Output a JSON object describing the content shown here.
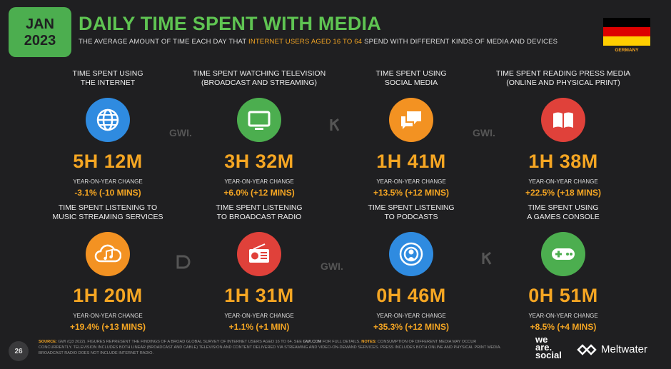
{
  "header": {
    "month": "JAN",
    "year": "2023",
    "title": "DAILY TIME SPENT WITH MEDIA",
    "subtitle_pre": "THE AVERAGE AMOUNT OF TIME EACH DAY THAT ",
    "subtitle_highlight": "INTERNET USERS AGED 16 TO 64",
    "subtitle_post": " SPEND WITH DIFFERENT KINDS OF MEDIA AND DEVICES",
    "country": "GERMANY"
  },
  "colors": {
    "accent_green": "#5fc452",
    "accent_orange": "#f5a623",
    "background": "#1f1f21"
  },
  "watermarks": [
    "GWI.",
    "GWI.",
    "GWI."
  ],
  "cells": [
    {
      "label": "TIME SPENT USING\nTHE INTERNET",
      "icon": "globe-icon",
      "color": "#2f8be0",
      "value": "5H 12M",
      "yoy_label": "YEAR-ON-YEAR CHANGE",
      "yoy_value": "-3.1% (-10 MINS)"
    },
    {
      "label": "TIME SPENT WATCHING TELEVISION\n(BROADCAST AND STREAMING)",
      "icon": "tv-icon",
      "color": "#4cae4f",
      "value": "3H 32M",
      "yoy_label": "YEAR-ON-YEAR CHANGE",
      "yoy_value": "+6.0% (+12 MINS)"
    },
    {
      "label": "TIME SPENT USING\nSOCIAL MEDIA",
      "icon": "chat-icon",
      "color": "#f39222",
      "value": "1H 41M",
      "yoy_label": "YEAR-ON-YEAR CHANGE",
      "yoy_value": "+13.5% (+12 MINS)"
    },
    {
      "label": "TIME SPENT READING PRESS MEDIA\n(ONLINE AND PHYSICAL PRINT)",
      "icon": "book-icon",
      "color": "#e0413a",
      "value": "1H 38M",
      "yoy_label": "YEAR-ON-YEAR CHANGE",
      "yoy_value": "+22.5% (+18 MINS)"
    },
    {
      "label": "TIME SPENT LISTENING TO\nMUSIC STREAMING SERVICES",
      "icon": "music-cloud-icon",
      "color": "#f39222",
      "value": "1H 20M",
      "yoy_label": "YEAR-ON-YEAR CHANGE",
      "yoy_value": "+19.4% (+13 MINS)"
    },
    {
      "label": "TIME SPENT LISTENING\nTO BROADCAST RADIO",
      "icon": "radio-icon",
      "color": "#e0413a",
      "value": "1H 31M",
      "yoy_label": "YEAR-ON-YEAR CHANGE",
      "yoy_value": "+1.1% (+1 MIN)"
    },
    {
      "label": "TIME SPENT LISTENING\nTO PODCASTS",
      "icon": "podcast-icon",
      "color": "#2f8be0",
      "value": "0H 46M",
      "yoy_label": "YEAR-ON-YEAR CHANGE",
      "yoy_value": "+35.3% (+12 MINS)"
    },
    {
      "label": "TIME SPENT USING\nA GAMES CONSOLE",
      "icon": "gamepad-icon",
      "color": "#4cae4f",
      "value": "0H 51M",
      "yoy_label": "YEAR-ON-YEAR CHANGE",
      "yoy_value": "+8.5% (+4 MINS)"
    }
  ],
  "footer": {
    "page": "26",
    "source_key": "SOURCE:",
    "source_text": " GWI (Q3 2022). FIGURES REPRESENT THE FINDINGS OF A BROAD GLOBAL SURVEY OF INTERNET USERS AGED 16 TO 64. SEE ",
    "source_link": "GWI.COM",
    "source_text2": " FOR FULL DETAILS. ",
    "notes_key": "NOTES:",
    "notes_text": " CONSUMPTION OF DIFFERENT MEDIA MAY OCCUR CONCURRENTLY. TELEVISION INCLUDES BOTH LINEAR (BROADCAST AND CABLE) TELEVISION AND CONTENT DELIVERED VIA STREAMING AND VIDEO-ON-DEMAND SERVICES. PRESS INCLUDES BOTH ONLINE AND PHYSICAL PRINT MEDIA. BROADCAST RADIO DOES NOT INCLUDE INTERNET RADIO.",
    "brand1_line1": "we",
    "brand1_line2": "are.",
    "brand1_line3": "social",
    "brand2": "Meltwater"
  }
}
